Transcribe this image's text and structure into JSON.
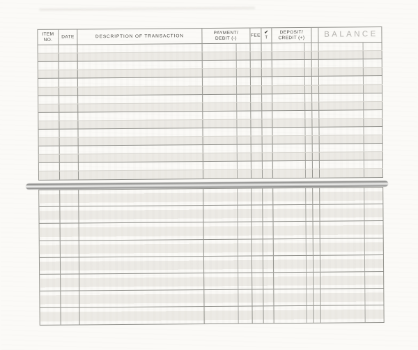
{
  "document": {
    "kind": "blank checkbook transaction register (scanned page, two ruled sections separated by a binding bar)",
    "columns": [
      {
        "id": "item_no",
        "lines": [
          "ITEM",
          "NO."
        ]
      },
      {
        "id": "date",
        "lines": [
          "DATE"
        ]
      },
      {
        "id": "description",
        "lines": [
          "DESCRIPTION OF TRANSACTION"
        ]
      },
      {
        "id": "payment_debit",
        "lines": [
          "PAYMENT/",
          "DEBIT (-)"
        ]
      },
      {
        "id": "fee",
        "lines": [
          "FEE"
        ]
      },
      {
        "id": "check_t",
        "lines": [
          "✔",
          "T"
        ]
      },
      {
        "id": "deposit_credit",
        "lines": [
          "DEPOSIT/",
          "CREDIT (+)"
        ]
      },
      {
        "id": "balance",
        "lines": [
          "BALANCE"
        ]
      }
    ],
    "sections": {
      "top": {
        "rows": 8,
        "entries": []
      },
      "bottom": {
        "rows": 8,
        "entries": []
      }
    },
    "colors": {
      "paper": "#fbfaf7",
      "row_shade": "#eceae5",
      "line_dark": "#8e8e89",
      "line_faint": "#d8d6d0",
      "line_vertical": "#94948e",
      "header_text": "#4a4944",
      "balance_text": "#b5b3af",
      "binding_bar_light": "#f0f0ef",
      "binding_bar_dark": "#8c8c8b"
    }
  }
}
